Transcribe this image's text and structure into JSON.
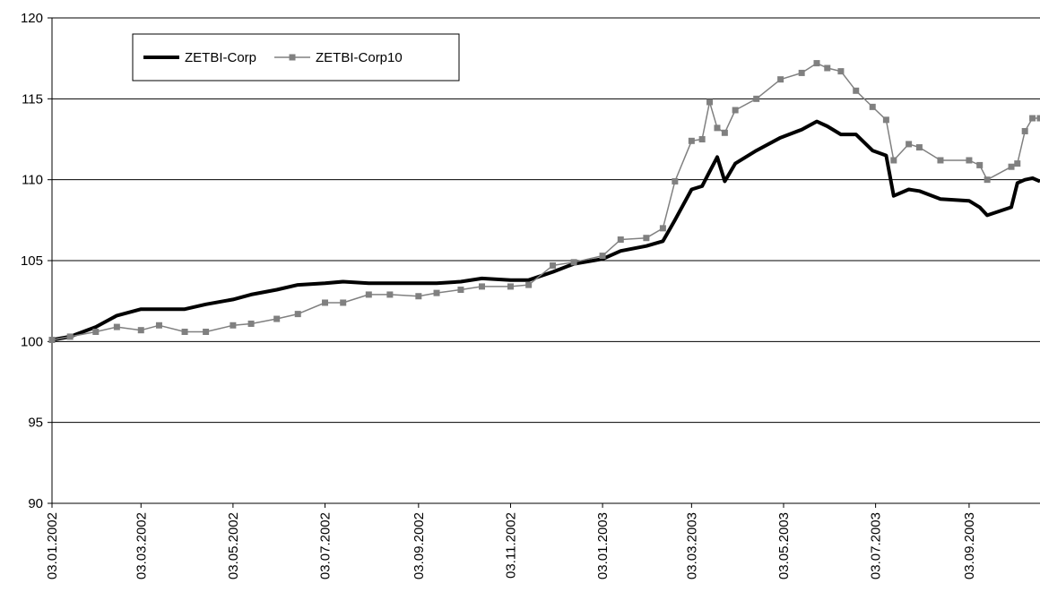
{
  "chart_data": {
    "type": "line",
    "x": [
      "03.01.2002",
      "15.01.2002",
      "01.02.2002",
      "15.02.2002",
      "03.03.2002",
      "15.03.2002",
      "01.04.2002",
      "15.04.2002",
      "03.05.2002",
      "15.05.2002",
      "01.06.2002",
      "15.06.2002",
      "03.07.2002",
      "15.07.2002",
      "01.08.2002",
      "15.08.2002",
      "03.09.2002",
      "15.09.2002",
      "01.10.2002",
      "15.10.2002",
      "03.11.2002",
      "15.11.2002",
      "01.12.2002",
      "15.12.2002",
      "03.01.2003",
      "15.01.2003",
      "01.02.2003",
      "12.02.2003",
      "20.02.2003",
      "03.03.2003",
      "10.03.2003",
      "15.03.2003",
      "20.03.2003",
      "25.03.2003",
      "01.04.2003",
      "15.04.2003",
      "01.05.2003",
      "15.05.2003",
      "25.05.2003",
      "01.06.2003",
      "10.06.2003",
      "20.06.2003",
      "01.07.2003",
      "10.07.2003",
      "15.07.2003",
      "25.07.2003",
      "01.08.2003",
      "15.08.2003",
      "03.09.2003",
      "10.09.2003",
      "15.09.2003",
      "01.10.2003",
      "05.10.2003",
      "10.10.2003",
      "15.10.2003",
      "20.10.2003"
    ],
    "series": [
      {
        "name": "ZETBI-Corp",
        "color": "#000000",
        "marker": false,
        "values": [
          100.1,
          100.3,
          100.9,
          101.6,
          102.0,
          102.0,
          102.0,
          102.3,
          102.6,
          102.9,
          103.2,
          103.5,
          103.6,
          103.7,
          103.6,
          103.6,
          103.6,
          103.6,
          103.7,
          103.9,
          103.8,
          103.8,
          104.3,
          104.8,
          105.1,
          105.6,
          105.9,
          106.2,
          107.5,
          109.4,
          109.6,
          110.5,
          111.4,
          109.9,
          111.0,
          111.8,
          112.6,
          113.1,
          113.6,
          113.3,
          112.8,
          112.8,
          111.8,
          111.5,
          109.0,
          109.4,
          109.3,
          108.8,
          108.7,
          108.3,
          107.8,
          108.3,
          109.8,
          110.0,
          110.1,
          109.9
        ]
      },
      {
        "name": "ZETBI-Corp10",
        "color": "#808080",
        "marker": true,
        "values": [
          100.1,
          100.3,
          100.6,
          100.9,
          100.7,
          101.0,
          100.6,
          100.6,
          101.0,
          101.1,
          101.4,
          101.7,
          102.4,
          102.4,
          102.9,
          102.9,
          102.8,
          103.0,
          103.2,
          103.4,
          103.4,
          103.5,
          104.7,
          104.9,
          105.3,
          106.3,
          106.4,
          107.0,
          109.9,
          112.4,
          112.5,
          114.8,
          113.2,
          112.9,
          114.3,
          115.0,
          116.2,
          116.6,
          117.2,
          116.9,
          116.7,
          115.5,
          114.5,
          113.7,
          111.2,
          112.2,
          112.0,
          111.2,
          111.2,
          110.9,
          110.0,
          110.8,
          111.0,
          113.0,
          113.8,
          113.8
        ]
      }
    ],
    "xlim": [
      "03.01.2002",
      "20.10.2003"
    ],
    "xticks": [
      "03.01.2002",
      "03.03.2002",
      "03.05.2002",
      "03.07.2002",
      "03.09.2002",
      "03.11.2002",
      "03.01.2003",
      "03.03.2003",
      "03.05.2003",
      "03.07.2003",
      "03.09.2003"
    ],
    "ylim": [
      90,
      120
    ],
    "yticks": [
      90,
      95,
      100,
      105,
      110,
      115,
      120
    ],
    "grid": true,
    "legend": "upper left"
  }
}
